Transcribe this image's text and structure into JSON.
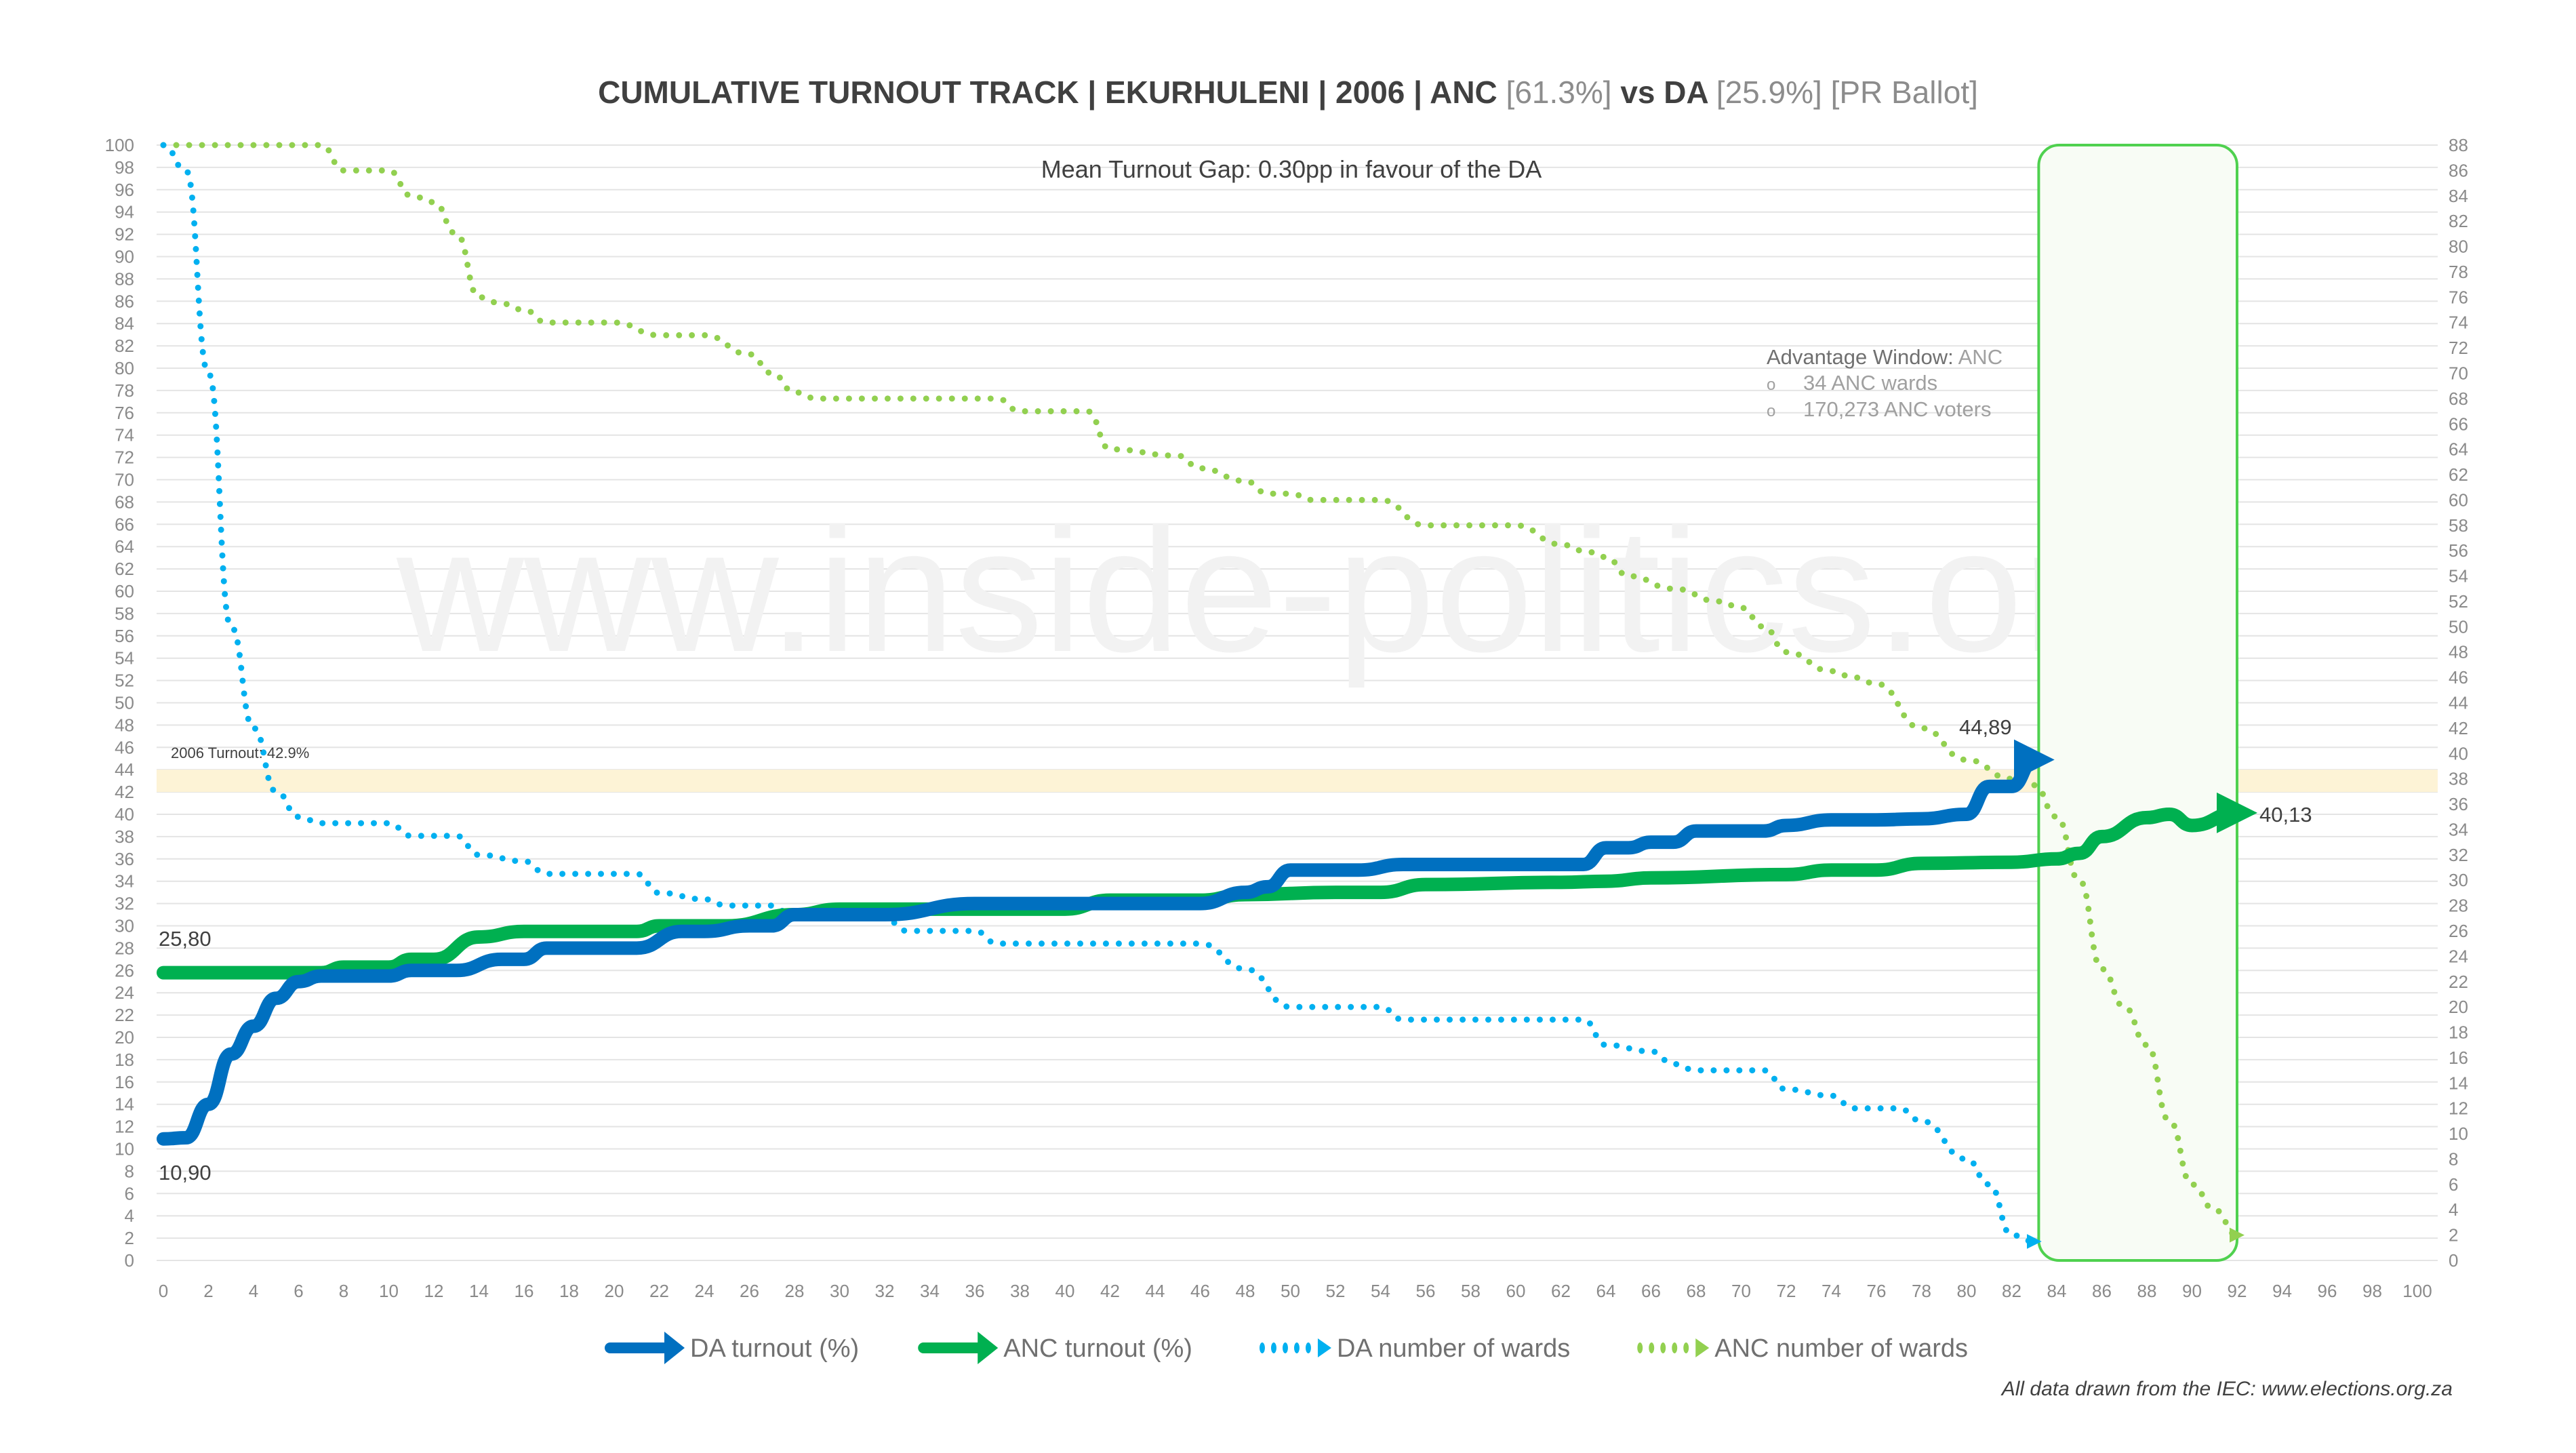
{
  "chart_data": {
    "type": "line",
    "title": {
      "main": "CUMULATIVE TURNOUT TRACK | EKURHULENI | 2006 | ANC ",
      "anc_pct": "[61.3%]",
      "vs": " vs DA ",
      "da_pct": "[25.9%]",
      "ballot": " [PR Ballot]"
    },
    "subtitle": "Mean Turnout Gap: 0.30pp in favour of the DA",
    "xlim": [
      0,
      100
    ],
    "x_ticks": [
      0,
      2,
      4,
      6,
      8,
      10,
      12,
      14,
      16,
      18,
      20,
      22,
      24,
      26,
      28,
      30,
      32,
      34,
      36,
      38,
      40,
      42,
      44,
      46,
      48,
      50,
      52,
      54,
      56,
      58,
      60,
      62,
      64,
      66,
      68,
      70,
      72,
      74,
      76,
      78,
      80,
      82,
      84,
      86,
      88,
      90,
      92,
      94,
      96,
      98,
      100
    ],
    "ylim_left": [
      0,
      100
    ],
    "ylim_right": [
      0,
      88
    ],
    "grid": true,
    "legend_position": "bottom",
    "turnout_line": {
      "label": "2006 Turnout: 42.9%",
      "value": 42.9,
      "color": "#fdf3d6"
    },
    "advantage_window": {
      "x_range": [
        83.2,
        92
      ],
      "color": "#4fd14f",
      "title": "Advantage Window: ",
      "party": "ANC",
      "items": [
        "34 ANC wards",
        "170,273 ANC voters"
      ],
      "bullet": "o"
    },
    "annotations": {
      "da_start": "10,90",
      "anc_start": "25,80",
      "da_end": "44,89",
      "anc_end": "40,13"
    },
    "series": [
      {
        "name": "DA turnout (%)",
        "axis": "left",
        "style": "solid",
        "color": "#0070c0",
        "x": [
          0,
          1,
          2,
          3,
          4,
          5,
          6,
          7,
          8,
          10,
          11,
          13,
          15,
          16,
          17,
          21,
          23,
          24,
          26,
          27,
          28,
          32,
          36,
          46,
          48,
          49,
          50,
          53,
          55,
          62,
          63,
          64,
          65,
          66,
          67,
          68,
          71,
          72,
          74,
          76,
          78,
          80,
          81,
          82,
          83
        ],
        "y": [
          10.9,
          11,
          14,
          18.5,
          21,
          23.5,
          25,
          25.5,
          25.5,
          25.5,
          26,
          26,
          27,
          27,
          28,
          28,
          29.5,
          29.5,
          30,
          30,
          31,
          31,
          32,
          32,
          33,
          33.5,
          35,
          35,
          35.5,
          35.5,
          35.5,
          37,
          37,
          37.5,
          37.5,
          38.5,
          38.5,
          39,
          39.5,
          39.5,
          39.6,
          40,
          42.5,
          42.5,
          44.89
        ]
      },
      {
        "name": "ANC turnout (%)",
        "axis": "left",
        "style": "solid",
        "color": "#00b050",
        "x": [
          0,
          7,
          8,
          10,
          11,
          12,
          14,
          16,
          21,
          22,
          25,
          28,
          30,
          40,
          42,
          46,
          48,
          52,
          54,
          56,
          62,
          64,
          66,
          72,
          74,
          76,
          78,
          82,
          84,
          85,
          86,
          88,
          89,
          90,
          92
        ],
        "y": [
          25.8,
          25.8,
          26.3,
          26.3,
          27,
          27,
          29,
          29.5,
          29.5,
          30,
          30,
          31,
          31.5,
          31.5,
          32.3,
          32.3,
          32.8,
          33,
          33,
          33.7,
          33.9,
          34,
          34.3,
          34.6,
          35,
          35,
          35.6,
          35.7,
          36,
          36.5,
          38,
          39.7,
          40,
          39,
          40.13
        ]
      },
      {
        "name": "DA number of wards",
        "axis": "right",
        "style": "dotted",
        "color": "#00b0f0",
        "x": [
          0,
          1,
          2,
          3,
          4,
          5,
          6,
          7,
          10,
          11,
          13,
          14,
          16,
          17,
          21,
          22,
          24,
          25,
          27,
          28,
          32,
          33,
          36,
          37,
          46,
          48,
          50,
          54,
          55,
          63,
          64,
          66,
          67,
          68,
          71,
          72,
          74,
          75,
          77,
          78,
          80,
          81,
          82,
          83
        ],
        "y": [
          88,
          86,
          70,
          50,
          42,
          37,
          35,
          34.5,
          34.5,
          33.5,
          33.5,
          32,
          31.5,
          30.5,
          30.5,
          29,
          28.5,
          28,
          28,
          27,
          27,
          26,
          26,
          25,
          25,
          23,
          20,
          20,
          19,
          19,
          17,
          16.5,
          15.5,
          15,
          15,
          13.5,
          13,
          12,
          12,
          11,
          8,
          6,
          2,
          1.5
        ]
      },
      {
        "name": "ANC number of wards",
        "axis": "right",
        "style": "dotted",
        "color": "#92d050",
        "x": [
          0,
          7,
          8,
          10,
          11,
          12,
          13,
          14,
          15,
          16,
          17,
          20,
          22,
          24,
          26,
          27,
          28,
          29,
          37,
          38,
          41,
          42,
          45,
          46,
          48,
          49,
          50,
          51,
          54,
          56,
          60,
          62,
          63,
          64,
          65,
          67,
          69,
          70,
          71,
          72,
          74,
          75,
          76,
          78,
          80,
          82,
          83,
          84,
          85,
          86,
          87,
          88,
          89,
          90,
          91,
          92
        ],
        "y": [
          88,
          88,
          86,
          86,
          84,
          83.5,
          81,
          76,
          75.5,
          75,
          74,
          74,
          73,
          73,
          71.5,
          70,
          68.5,
          68,
          68,
          67,
          67,
          64,
          63.5,
          62.5,
          61.5,
          60.5,
          60.5,
          60,
          60,
          58,
          58,
          56.5,
          56,
          55.5,
          54,
          53,
          52,
          51.5,
          50,
          48,
          46.5,
          46,
          45.5,
          42,
          39.5,
          38,
          37.5,
          35,
          30,
          23,
          20,
          17,
          11,
          6,
          4,
          2
        ]
      }
    ]
  },
  "watermark": "www.inside-politics.org",
  "footnote": "All data drawn from the IEC: www.elections.org.za"
}
